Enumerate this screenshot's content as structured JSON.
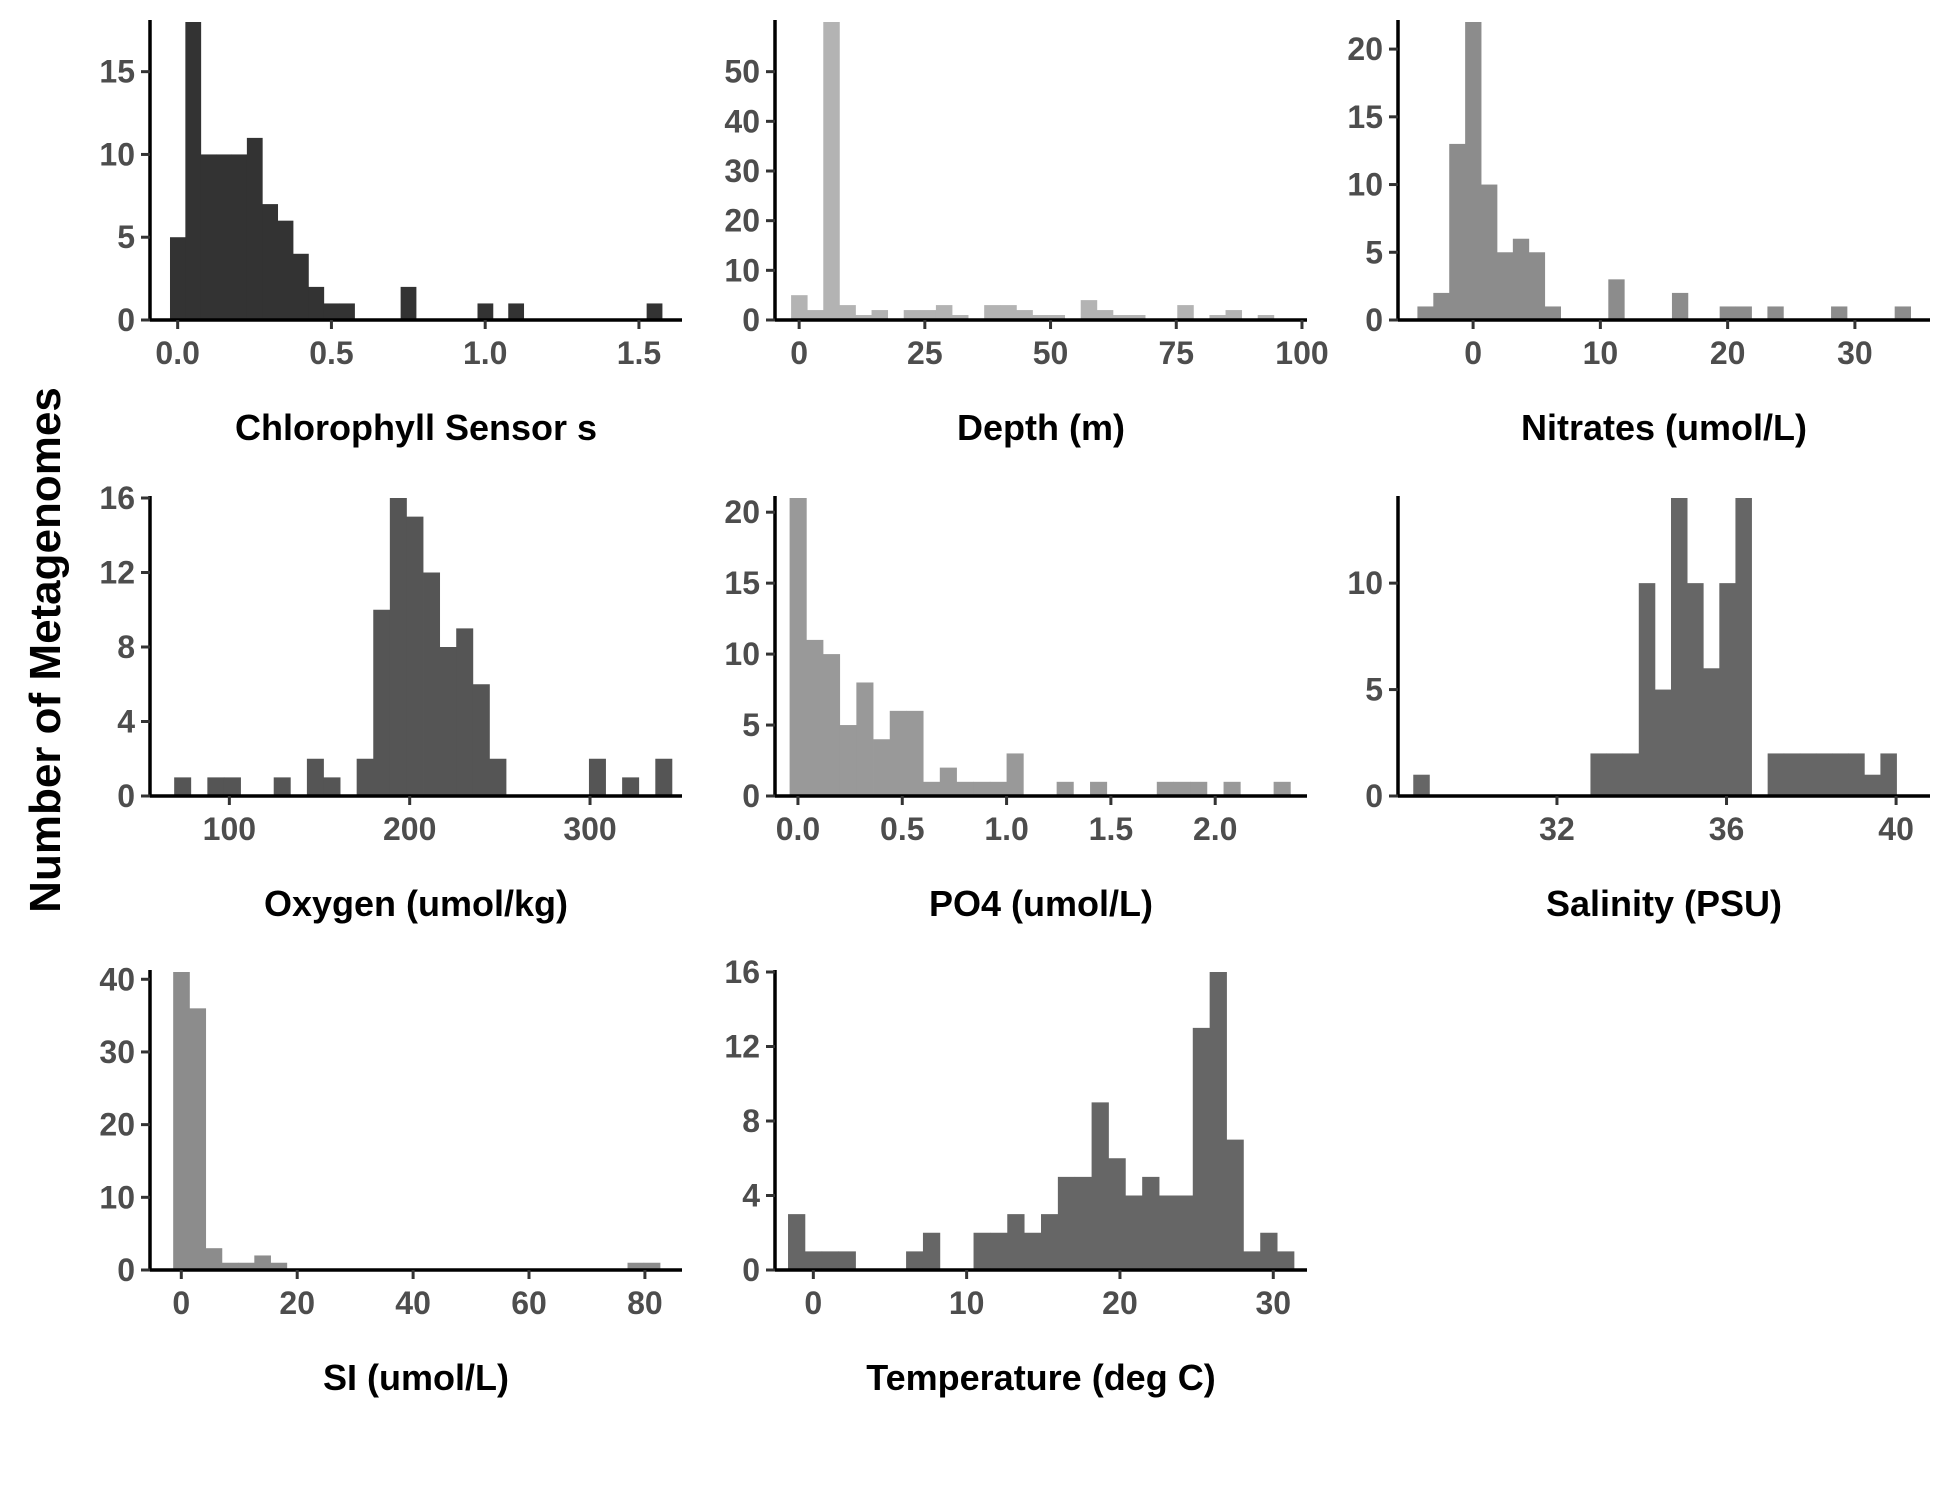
{
  "ylabel": "Number of Metagenomes",
  "chart_data": [
    {
      "type": "bar",
      "xlabel": "Chlorophyll Sensor s",
      "color": "#333333",
      "bin_width": 0.05,
      "bin_centers": [
        0.0,
        0.05,
        0.1,
        0.15,
        0.2,
        0.25,
        0.3,
        0.35,
        0.4,
        0.45,
        0.5,
        0.55,
        0.6,
        0.65,
        0.7,
        0.75,
        0.8,
        0.85,
        0.9,
        0.95,
        1.0,
        1.05,
        1.1,
        1.15,
        1.2,
        1.25,
        1.3,
        1.35,
        1.4,
        1.45,
        1.5,
        1.55
      ],
      "counts": [
        5,
        18,
        10,
        10,
        10,
        11,
        7,
        6,
        4,
        2,
        1,
        1,
        0,
        0,
        0,
        2,
        0,
        0,
        0,
        0,
        1,
        0,
        1,
        0,
        0,
        0,
        0,
        0,
        0,
        0,
        0,
        1
      ],
      "xlim": [
        -0.09,
        1.64
      ],
      "ylim": [
        0,
        18
      ],
      "xticks": [
        0.0,
        0.5,
        1.0,
        1.5
      ],
      "xtick_labels": [
        "0.0",
        "0.5",
        "1.0",
        "1.5"
      ],
      "yticks": [
        0,
        5,
        10,
        15
      ],
      "ytick_labels": [
        "0",
        "5",
        "10",
        "15"
      ]
    },
    {
      "type": "bar",
      "xlabel": "Depth (m)",
      "color": "#b3b3b3",
      "bin_width": 3.2,
      "bin_centers": [
        0,
        3.2,
        6.4,
        9.6,
        12.8,
        16,
        19.2,
        22.4,
        25.6,
        28.8,
        32,
        35.2,
        38.4,
        41.6,
        44.8,
        48,
        51.2,
        54.4,
        57.6,
        60.8,
        64,
        67.2,
        70.4,
        73.6,
        76.8,
        80,
        83.2,
        86.4,
        89.6,
        92.8,
        96
      ],
      "counts": [
        5,
        2,
        60,
        3,
        1,
        2,
        0,
        2,
        2,
        3,
        1,
        0,
        3,
        3,
        2,
        1,
        1,
        0,
        4,
        2,
        1,
        1,
        0,
        0,
        3,
        0,
        1,
        2,
        0,
        1,
        0
      ],
      "xlim": [
        -4.8,
        101
      ],
      "ylim": [
        0,
        60
      ],
      "xticks": [
        0,
        25,
        50,
        75,
        100
      ],
      "xtick_labels": [
        "0",
        "25",
        "50",
        "75",
        "100"
      ],
      "yticks": [
        0,
        10,
        20,
        30,
        40,
        50
      ],
      "ytick_labels": [
        "0",
        "10",
        "20",
        "30",
        "40",
        "50"
      ]
    },
    {
      "type": "bar",
      "xlabel": "Nitrates (umol/L)",
      "color": "#8c8c8c",
      "bin_width": 1.25,
      "bin_centers": [
        -3.75,
        -2.5,
        -1.25,
        0,
        1.25,
        2.5,
        3.75,
        5,
        6.25,
        7.5,
        8.75,
        10,
        11.25,
        12.5,
        13.75,
        15,
        16.25,
        17.5,
        18.75,
        20,
        21.25,
        22.5,
        23.75,
        25,
        26.25,
        27.5,
        28.75,
        30,
        31.25,
        32.5,
        33.75
      ],
      "counts": [
        1,
        2,
        13,
        22,
        10,
        5,
        6,
        5,
        1,
        0,
        0,
        0,
        3,
        0,
        0,
        0,
        2,
        0,
        0,
        1,
        1,
        0,
        1,
        0,
        0,
        0,
        1,
        0,
        0,
        0,
        1
      ],
      "xlim": [
        -5.9,
        35.9
      ],
      "ylim": [
        0,
        22
      ],
      "xticks": [
        0,
        10,
        20,
        30
      ],
      "xtick_labels": [
        "0",
        "10",
        "20",
        "30"
      ],
      "yticks": [
        0,
        5,
        10,
        15,
        20
      ],
      "ytick_labels": [
        "0",
        "5",
        "10",
        "15",
        "20"
      ]
    },
    {
      "type": "bar",
      "xlabel": "Oxygen (umol/kg)",
      "color": "#555555",
      "bin_width": 9.2,
      "bin_centers": [
        74,
        83.2,
        92.4,
        101.6,
        110.8,
        120,
        129.2,
        138.4,
        147.6,
        156.8,
        166,
        175.2,
        184.4,
        193.6,
        202.8,
        212,
        221.2,
        230.4,
        239.6,
        248.8,
        258,
        267.2,
        276.4,
        285.6,
        294.8,
        304,
        313.2,
        322.4,
        331.6,
        340.8
      ],
      "counts": [
        1,
        0,
        1,
        1,
        0,
        0,
        1,
        0,
        2,
        1,
        0,
        2,
        10,
        16,
        15,
        12,
        8,
        9,
        6,
        2,
        0,
        0,
        0,
        0,
        0,
        2,
        0,
        1,
        0,
        2
      ],
      "xlim": [
        56,
        351
      ],
      "ylim": [
        0,
        16
      ],
      "xticks": [
        100,
        200,
        300
      ],
      "xtick_labels": [
        "100",
        "200",
        "300"
      ],
      "yticks": [
        0,
        4,
        8,
        12,
        16
      ],
      "ytick_labels": [
        "0",
        "4",
        "8",
        "12",
        "16"
      ]
    },
    {
      "type": "bar",
      "xlabel": "PO4 (umol/L)",
      "color": "#999999",
      "bin_width": 0.08,
      "bin_centers": [
        0.0,
        0.08,
        0.16,
        0.24,
        0.32,
        0.4,
        0.48,
        0.56,
        0.64,
        0.72,
        0.8,
        0.88,
        0.96,
        1.04,
        1.12,
        1.2,
        1.28,
        1.36,
        1.44,
        1.52,
        1.6,
        1.68,
        1.76,
        1.84,
        1.92,
        2.0,
        2.08,
        2.16,
        2.24,
        2.32
      ],
      "counts": [
        21,
        11,
        10,
        5,
        8,
        4,
        6,
        6,
        1,
        2,
        1,
        1,
        1,
        3,
        0,
        0,
        1,
        0,
        1,
        0,
        0,
        0,
        1,
        1,
        1,
        0,
        1,
        0,
        0,
        1
      ],
      "xlim": [
        -0.11,
        2.44
      ],
      "ylim": [
        0,
        21
      ],
      "xticks": [
        0.0,
        0.5,
        1.0,
        1.5,
        2.0
      ],
      "xtick_labels": [
        "0.0",
        "0.5",
        "1.0",
        "1.5",
        "2.0"
      ],
      "yticks": [
        0,
        5,
        10,
        15,
        20
      ],
      "ytick_labels": [
        "0",
        "5",
        "10",
        "15",
        "20"
      ]
    },
    {
      "type": "bar",
      "xlabel": "Salinity (PSU)",
      "color": "#666666",
      "bin_width": 0.38,
      "bin_centers": [
        28.8,
        29.18,
        29.56,
        29.94,
        30.32,
        30.7,
        31.08,
        31.46,
        31.84,
        32.22,
        32.6,
        32.98,
        33.36,
        33.74,
        34.12,
        34.5,
        34.88,
        35.26,
        35.64,
        36.02,
        36.4,
        36.78,
        37.16,
        37.54,
        37.92,
        38.3,
        38.68,
        39.06,
        39.44,
        39.82,
        40.2
      ],
      "counts": [
        1,
        0,
        0,
        0,
        0,
        0,
        0,
        0,
        0,
        0,
        0,
        2,
        2,
        2,
        10,
        5,
        14,
        10,
        6,
        10,
        14,
        0,
        2,
        2,
        2,
        2,
        2,
        2,
        1,
        2,
        0
      ],
      "xlim": [
        28.25,
        40.8
      ],
      "ylim": [
        0,
        14
      ],
      "xticks": [
        32,
        36,
        40
      ],
      "xtick_labels": [
        "32",
        "36",
        "40"
      ],
      "yticks": [
        0,
        5,
        10
      ],
      "ytick_labels": [
        "0",
        "5",
        "10"
      ]
    },
    {
      "type": "bar",
      "xlabel": "SI (umol/L)",
      "color": "#8c8c8c",
      "bin_width": 2.8,
      "bin_centers": [
        0,
        2.8,
        5.6,
        8.4,
        11.2,
        14,
        16.8,
        19.6,
        22.4,
        25.2,
        28,
        30.8,
        33.6,
        36.4,
        39.2,
        42,
        44.8,
        47.6,
        50.4,
        53.2,
        56,
        58.8,
        61.6,
        64.4,
        67.2,
        70,
        72.8,
        75.6,
        78.4,
        81.2
      ],
      "counts": [
        41,
        36,
        3,
        1,
        1,
        2,
        1,
        0,
        0,
        0,
        0,
        0,
        0,
        0,
        0,
        0,
        0,
        0,
        0,
        0,
        0,
        0,
        0,
        0,
        0,
        0,
        0,
        0,
        1,
        1
      ],
      "xlim": [
        -5.4,
        86.4
      ],
      "ylim": [
        0,
        41
      ],
      "xticks": [
        0,
        20,
        40,
        60,
        80
      ],
      "xtick_labels": [
        "0",
        "20",
        "40",
        "60",
        "80"
      ],
      "yticks": [
        0,
        10,
        20,
        30,
        40
      ],
      "ytick_labels": [
        "0",
        "10",
        "20",
        "30",
        "40"
      ]
    },
    {
      "type": "bar",
      "xlabel": "Temperature (deg C)",
      "color": "#666666",
      "bin_width": 1.1,
      "bin_centers": [
        -1.1,
        0,
        1.1,
        2.2,
        3.3,
        4.4,
        5.5,
        6.6,
        7.7,
        8.8,
        9.9,
        11,
        12.1,
        13.2,
        14.3,
        15.4,
        16.5,
        17.6,
        18.7,
        19.8,
        20.9,
        22,
        23.1,
        24.2,
        25.3,
        26.4,
        27.5,
        28.6,
        29.7,
        30.8
      ],
      "counts": [
        3,
        1,
        1,
        1,
        0,
        0,
        0,
        1,
        2,
        0,
        0,
        2,
        2,
        3,
        2,
        3,
        5,
        5,
        9,
        6,
        4,
        5,
        4,
        4,
        13,
        16,
        7,
        1,
        2,
        1
      ],
      "xlim": [
        -2.5,
        32.2
      ],
      "ylim": [
        0,
        16
      ],
      "xticks": [
        0,
        10,
        20,
        30
      ],
      "xtick_labels": [
        "0",
        "10",
        "20",
        "30"
      ],
      "yticks": [
        0,
        4,
        8,
        12,
        16
      ],
      "ytick_labels": [
        "0",
        "4",
        "8",
        "12",
        "16"
      ]
    }
  ]
}
